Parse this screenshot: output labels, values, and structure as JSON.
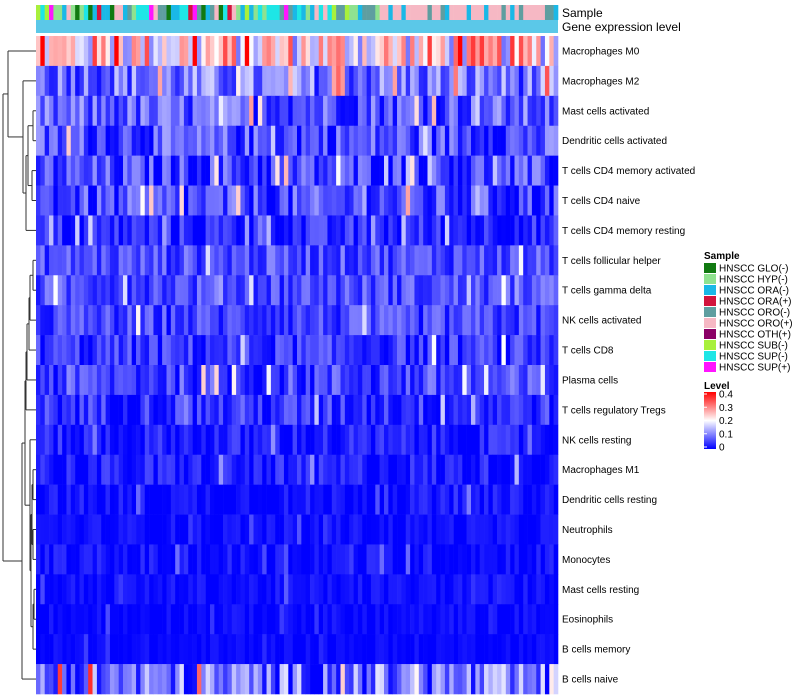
{
  "chart_data": {
    "type": "heatmap",
    "title": "",
    "n_samples": 120,
    "rows": [
      {
        "name": "Macrophages M0",
        "typical": 0.22,
        "spread": 0.14
      },
      {
        "name": "Macrophages M2",
        "typical": 0.09,
        "spread": 0.08
      },
      {
        "name": "Mast cells activated",
        "typical": 0.07,
        "spread": 0.07
      },
      {
        "name": "Dendritic cells activated",
        "typical": 0.06,
        "spread": 0.07
      },
      {
        "name": "T cells CD4 memory activated",
        "typical": 0.05,
        "spread": 0.07
      },
      {
        "name": "T cells CD4 naive",
        "typical": 0.05,
        "spread": 0.07
      },
      {
        "name": "T cells CD4 memory resting",
        "typical": 0.03,
        "spread": 0.05
      },
      {
        "name": "T cells follicular helper",
        "typical": 0.06,
        "spread": 0.05
      },
      {
        "name": "T cells gamma delta",
        "typical": 0.06,
        "spread": 0.05
      },
      {
        "name": "NK cells activated",
        "typical": 0.05,
        "spread": 0.05
      },
      {
        "name": "T cells CD8",
        "typical": 0.04,
        "spread": 0.05
      },
      {
        "name": "Plasma cells",
        "typical": 0.05,
        "spread": 0.06
      },
      {
        "name": "T cells regulatory  Tregs",
        "typical": 0.04,
        "spread": 0.05
      },
      {
        "name": "NK cells resting",
        "typical": 0.02,
        "spread": 0.04
      },
      {
        "name": "Macrophages M1",
        "typical": 0.02,
        "spread": 0.04
      },
      {
        "name": "Dendritic cells resting",
        "typical": 0.01,
        "spread": 0.03
      },
      {
        "name": "Neutrophils",
        "typical": 0.01,
        "spread": 0.02
      },
      {
        "name": "Monocytes",
        "typical": 0.01,
        "spread": 0.03
      },
      {
        "name": "Mast cells resting",
        "typical": 0.01,
        "spread": 0.02
      },
      {
        "name": "Eosinophils",
        "typical": 0.005,
        "spread": 0.02
      },
      {
        "name": "B cells memory",
        "typical": 0.005,
        "spread": 0.015
      },
      {
        "name": "B cells naive",
        "typical": 0.08,
        "spread": 0.1
      }
    ],
    "annotation_tracks": [
      "Sample",
      "Gene expression level"
    ],
    "gene_expression_track_color": "#5bc8e8",
    "sample_groups": [
      {
        "label": "HNSCC GLO(-)",
        "color": "#117a11"
      },
      {
        "label": "HNSCC HYP(-)",
        "color": "#8fe28f"
      },
      {
        "label": "HNSCC ORA(-)",
        "color": "#1ab8e6"
      },
      {
        "label": "HNSCC ORA(+)",
        "color": "#d2143c"
      },
      {
        "label": "HNSCC ORO(-)",
        "color": "#5f9ea0"
      },
      {
        "label": "HNSCC ORO(+)",
        "color": "#f6b8c4"
      },
      {
        "label": "HNSCC OTH(+)",
        "color": "#8b0066"
      },
      {
        "label": "HNSCC SUB(-)",
        "color": "#a8f03c"
      },
      {
        "label": "HNSCC SUP(-)",
        "color": "#1ee6e6"
      },
      {
        "label": "HNSCC SUP(+)",
        "color": "#ff14ff"
      }
    ],
    "legend": {
      "sample_title": "Sample",
      "level_title": "Level",
      "level_ticks": [
        0,
        0.1,
        0.2,
        0.3,
        0.4
      ],
      "level_tick_labels": [
        "0",
        "0.1",
        "0.2",
        "0.3",
        "0.4"
      ],
      "color_low": "#0000ff",
      "color_mid": "#ffffff",
      "color_high": "#ff0000",
      "range": [
        0,
        0.4
      ]
    }
  }
}
